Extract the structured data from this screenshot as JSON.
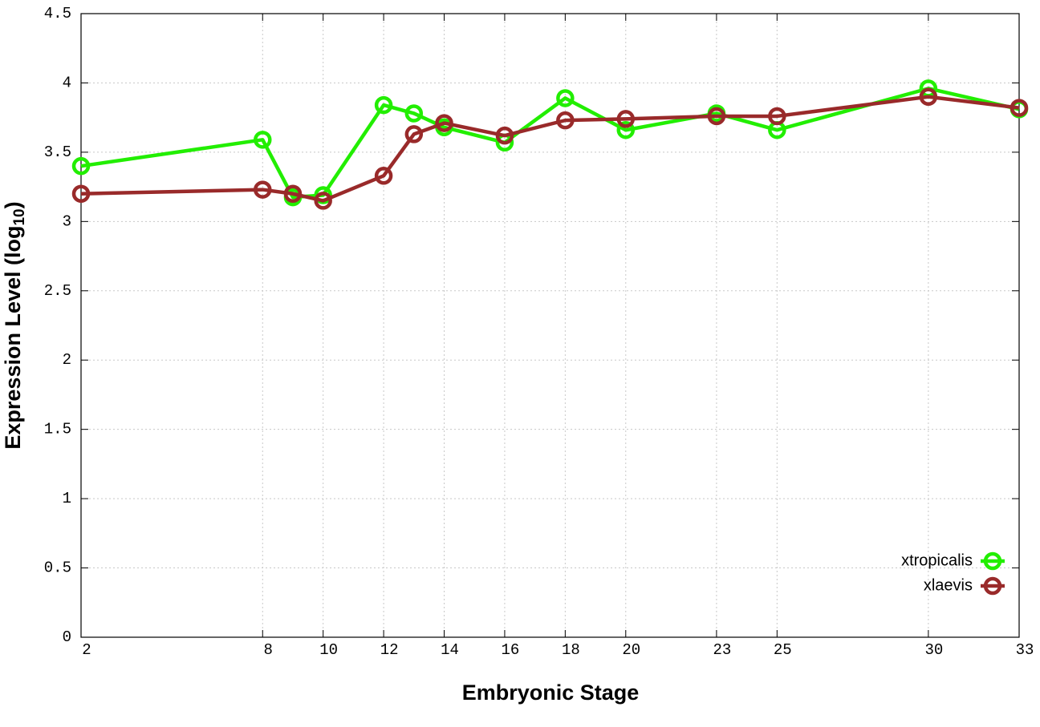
{
  "chart_data": {
    "type": "line",
    "xlabel": "Embryonic Stage",
    "ylabel": "Expression Level (log",
    "ylabel_sub": "10",
    "ylabel_end": ")",
    "x": [
      2,
      8,
      9,
      10,
      12,
      13,
      14,
      16,
      18,
      20,
      23,
      25,
      30,
      33
    ],
    "series": [
      {
        "name": "xtropicalis",
        "color": "#22ee00",
        "values": [
          3.4,
          3.59,
          3.175,
          3.19,
          3.84,
          3.78,
          3.68,
          3.57,
          3.89,
          3.66,
          3.78,
          3.66,
          3.96,
          3.81
        ]
      },
      {
        "name": "xlaevis",
        "color": "#992a2a",
        "values": [
          3.2,
          3.23,
          3.2,
          3.15,
          3.33,
          3.63,
          3.71,
          3.62,
          3.73,
          3.74,
          3.76,
          3.76,
          3.9,
          3.82
        ]
      }
    ],
    "xlim": [
      2,
      33
    ],
    "xticks": [
      2,
      8,
      10,
      12,
      14,
      16,
      18,
      20,
      23,
      25,
      30,
      33
    ],
    "ylim": [
      0,
      4.5
    ],
    "yticks": [
      0,
      0.5,
      1,
      1.5,
      2,
      2.5,
      3,
      3.5,
      4,
      4.5
    ],
    "grid": true,
    "legend": "lower right"
  }
}
